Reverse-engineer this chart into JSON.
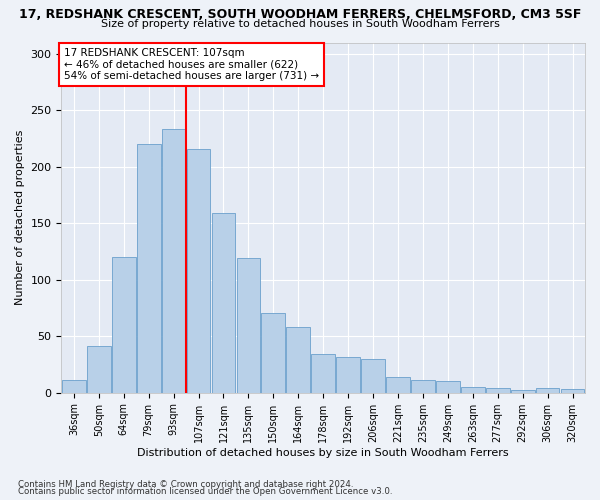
{
  "title": "17, REDSHANK CRESCENT, SOUTH WOODHAM FERRERS, CHELMSFORD, CM3 5SF",
  "subtitle": "Size of property relative to detached houses in South Woodham Ferrers",
  "xlabel": "Distribution of detached houses by size in South Woodham Ferrers",
  "ylabel": "Number of detached properties",
  "categories": [
    "36sqm",
    "50sqm",
    "64sqm",
    "79sqm",
    "93sqm",
    "107sqm",
    "121sqm",
    "135sqm",
    "150sqm",
    "164sqm",
    "178sqm",
    "192sqm",
    "206sqm",
    "221sqm",
    "235sqm",
    "249sqm",
    "263sqm",
    "277sqm",
    "292sqm",
    "306sqm",
    "320sqm"
  ],
  "values": [
    11,
    41,
    120,
    220,
    233,
    216,
    159,
    119,
    71,
    58,
    34,
    32,
    30,
    14,
    11,
    10,
    5,
    4,
    2,
    4,
    3
  ],
  "bar_color": "#b8d0e8",
  "bar_edge_color": "#6aa0cc",
  "annotation_title": "17 REDSHANK CRESCENT: 107sqm",
  "annotation_line1": "← 46% of detached houses are smaller (622)",
  "annotation_line2": "54% of semi-detached houses are larger (731) →",
  "footer1": "Contains HM Land Registry data © Crown copyright and database right 2024.",
  "footer2": "Contains public sector information licensed under the Open Government Licence v3.0.",
  "bg_color": "#eef2f8",
  "plot_bg_color": "#e4eaf4",
  "ylim": [
    0,
    310
  ],
  "yticks": [
    0,
    50,
    100,
    150,
    200,
    250,
    300
  ],
  "redline_bar_index": 5
}
